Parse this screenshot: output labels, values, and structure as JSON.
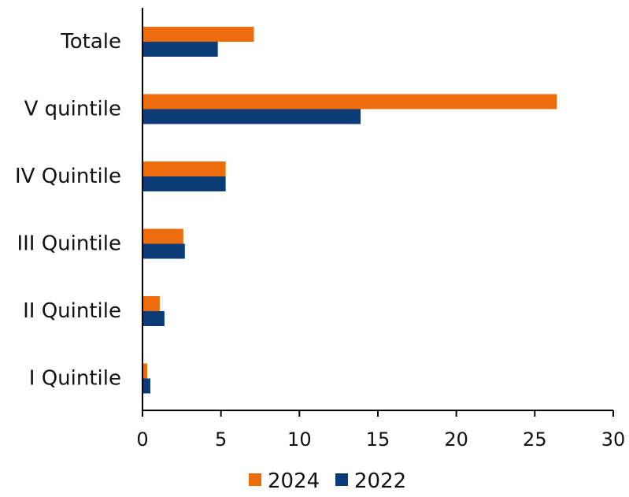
{
  "chart_data": {
    "type": "bar",
    "orientation": "horizontal",
    "categories": [
      "Totale",
      "V quintile",
      "IV Quintile",
      "III Quintile",
      "II Quintile",
      "I Quintile"
    ],
    "series": [
      {
        "name": "2024",
        "color": "#ED6D0E",
        "values": [
          7.1,
          26.4,
          5.3,
          2.6,
          1.1,
          0.3
        ]
      },
      {
        "name": "2022",
        "color": "#0B3C77",
        "values": [
          4.8,
          13.9,
          5.3,
          2.7,
          1.4,
          0.5
        ]
      }
    ],
    "xlim": [
      0,
      30
    ],
    "xticks": [
      "0",
      "5",
      "10",
      "15",
      "20",
      "25",
      "30"
    ],
    "legend_position": "bottom",
    "grid": false
  }
}
